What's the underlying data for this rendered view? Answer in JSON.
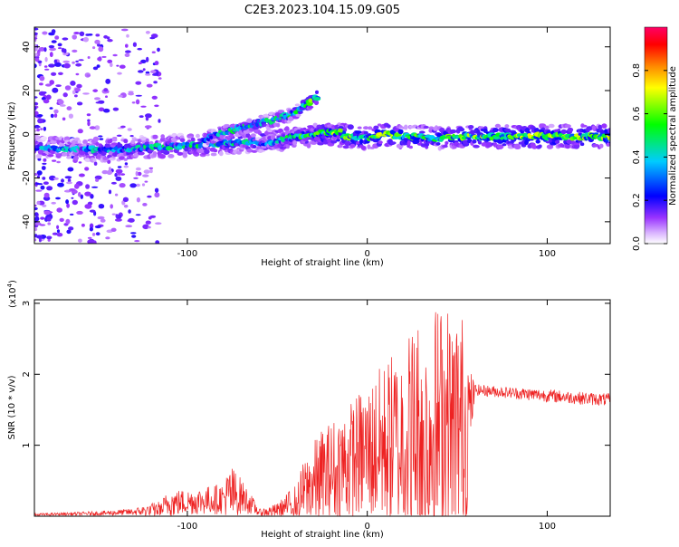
{
  "title": "C2E3.2023.104.15.09.G05",
  "colors": {
    "snr_line": "#ee2222",
    "colormap": [
      "#ffffff",
      "#d9b3ff",
      "#9933ff",
      "#0000ff",
      "#00ccff",
      "#00ff00",
      "#ffff00",
      "#ff8800",
      "#ff0000",
      "#ff0066"
    ]
  },
  "chart_data": [
    {
      "type": "heatmap",
      "xlabel": "Height of straight line (km)",
      "ylabel": "Frequency (Hz)",
      "xlim": [
        -185,
        135
      ],
      "ylim": [
        -50,
        49
      ],
      "xticks": [
        -100,
        0,
        100
      ],
      "xtick_labels": [
        "-100",
        "0",
        "100"
      ],
      "yticks": [
        -40,
        -20,
        0,
        20,
        40
      ],
      "ytick_labels": [
        "-40",
        "-20",
        "0",
        "20",
        "40"
      ],
      "colorbar": {
        "label": "Normalized spectral amplitude",
        "range": [
          0.0,
          1.0
        ],
        "ticks": [
          0.0,
          0.2,
          0.4,
          0.6,
          0.8
        ],
        "tick_labels": [
          "0.0",
          "0.2",
          "0.4",
          "0.6",
          "0.8"
        ]
      },
      "main_trace": {
        "x": [
          -185,
          -160,
          -140,
          -120,
          -100,
          -80,
          -60,
          -40,
          -30,
          -20,
          -10,
          0,
          10,
          20,
          30,
          40,
          50,
          70,
          90,
          110,
          135
        ],
        "frequency": [
          -6,
          -7,
          -7,
          -6,
          -5,
          -4,
          -3,
          -2,
          0,
          0,
          -1,
          -2,
          0,
          -1,
          -1,
          -2,
          -1,
          -1,
          -1,
          -1,
          -1
        ],
        "amplitude": [
          0.3,
          0.3,
          0.35,
          0.35,
          0.4,
          0.4,
          0.4,
          0.45,
          0.5,
          0.55,
          0.6,
          0.45,
          0.6,
          0.5,
          0.5,
          0.45,
          0.55,
          0.55,
          0.6,
          0.55,
          0.6
        ]
      },
      "secondary_traces": [
        {
          "x": [
            -90,
            -70,
            -55,
            -42,
            -35,
            -28
          ],
          "frequency": [
            -2,
            3,
            6,
            9,
            13,
            17
          ],
          "amplitude": [
            0.35,
            0.4,
            0.4,
            0.45,
            0.5,
            0.55
          ]
        },
        {
          "x": [
            -60,
            -50,
            -40,
            -30,
            -22,
            -15
          ],
          "frequency": [
            -5,
            -3,
            -1,
            0,
            1,
            1
          ],
          "amplitude": [
            0.35,
            0.4,
            0.45,
            0.5,
            0.55,
            0.6
          ]
        }
      ]
    },
    {
      "type": "line",
      "xlabel": "Height of straight line (km)",
      "ylabel": "SNR (10 * v/v)",
      "y_multiplier": "(x10",
      "y_multiplier_exp": "4",
      "xlim": [
        -185,
        135
      ],
      "ylim": [
        0,
        3.05
      ],
      "xticks": [
        -100,
        0,
        100
      ],
      "xtick_labels": [
        "-100",
        "0",
        "100"
      ],
      "yticks": [
        1,
        2,
        3
      ],
      "ytick_labels": [
        "1",
        "2",
        "3"
      ],
      "series": [
        {
          "x": [
            -185,
            -170,
            -150,
            -130,
            -115,
            -110,
            -100,
            -90,
            -80,
            -76,
            -70,
            -65,
            -60,
            -50,
            -40,
            -35,
            -30,
            -25,
            -20,
            -15,
            -10,
            -5,
            0,
            5,
            10,
            15,
            20,
            25,
            30,
            35,
            40,
            45,
            50,
            55,
            57,
            60,
            70,
            80,
            90,
            100,
            110,
            120,
            135
          ],
          "mean": [
            0.02,
            0.03,
            0.04,
            0.06,
            0.1,
            0.18,
            0.2,
            0.22,
            0.25,
            0.3,
            0.28,
            0.18,
            0.05,
            0.08,
            0.2,
            0.35,
            0.45,
            0.55,
            0.6,
            0.7,
            0.75,
            0.85,
            0.9,
            0.95,
            1.0,
            1.05,
            1.1,
            1.15,
            1.2,
            1.2,
            1.25,
            1.25,
            1.3,
            1.3,
            1.5,
            1.78,
            1.76,
            1.74,
            1.72,
            1.7,
            1.68,
            1.66,
            1.64
          ],
          "spread": [
            0.02,
            0.02,
            0.03,
            0.05,
            0.12,
            0.2,
            0.18,
            0.2,
            0.22,
            0.45,
            0.25,
            0.15,
            0.05,
            0.1,
            0.25,
            0.45,
            0.6,
            0.7,
            0.75,
            0.8,
            0.85,
            0.9,
            0.95,
            1.1,
            1.2,
            1.3,
            1.4,
            1.6,
            1.7,
            1.75,
            1.8,
            1.75,
            1.7,
            1.5,
            0.6,
            0.08,
            0.08,
            0.08,
            0.09,
            0.09,
            0.09,
            0.09,
            0.09
          ]
        }
      ]
    }
  ]
}
